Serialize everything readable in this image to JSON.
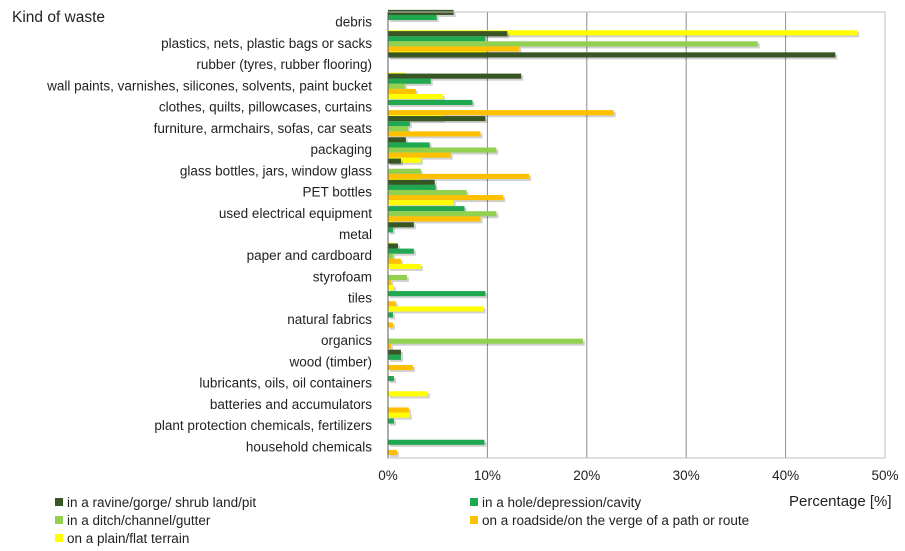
{
  "chart_data": {
    "type": "bar",
    "orientation": "horizontal",
    "corner_title": "Kind of waste",
    "xlabel": "Percentage [%]",
    "ylabel": "",
    "xlim": [
      0,
      50
    ],
    "xticks": [
      "0%",
      "10%",
      "20%",
      "30%",
      "40%",
      "50%"
    ],
    "grid": true,
    "legend_position": "bottom",
    "categories": [
      "debris",
      "plastics, nets, plastic bags or sacks",
      "rubber (tyres, rubber flooring)",
      "wall paints, varnishes, silicones, solvents, paint bucket",
      "clothes, quilts, pillowcases, curtains",
      "furniture, armchairs, sofas, car seats",
      "packaging",
      "glass bottles, jars, window glass",
      "PET bottles",
      "used electrical equipment",
      "metal",
      "paper and cardboard",
      "styrofoam",
      "tiles",
      "natural fabrics",
      "organics",
      "wood (timber)",
      "lubricants, oils, oil containers",
      "batteries and accumulators",
      "plant protection chemicals, fertilizers",
      "household chemicals"
    ],
    "series": [
      {
        "name": "in a ravine/gorge/ shrub land/pit",
        "color": "#375623",
        "values": [
          6.6,
          12.0,
          45.0,
          13.4,
          0,
          9.8,
          1.8,
          1.3,
          4.7,
          0,
          2.6,
          1.0,
          0,
          0,
          0,
          0,
          1.3,
          0,
          0,
          0,
          0
        ]
      },
      {
        "name": "in a hole/depression/cavity",
        "color": "#1fa84f",
        "values": [
          4.9,
          9.8,
          0,
          4.3,
          8.5,
          2.2,
          4.2,
          0,
          4.8,
          7.7,
          0.5,
          2.6,
          0,
          9.8,
          0.5,
          0,
          1.3,
          0.6,
          0,
          0.6,
          9.7
        ]
      },
      {
        "name": "in a ditch/channel/gutter",
        "color": "#92d050",
        "values": [
          0,
          37.2,
          0,
          1.7,
          0,
          2.0,
          10.9,
          3.3,
          7.9,
          10.9,
          0,
          0.5,
          1.9,
          0,
          0,
          19.6,
          0,
          0,
          0,
          0,
          0
        ]
      },
      {
        "name": "on a roadside/on the verge of a path or route",
        "color": "#ffc000",
        "values": [
          0,
          13.2,
          0,
          2.8,
          22.7,
          9.3,
          6.3,
          14.2,
          11.6,
          9.3,
          0,
          1.3,
          0.3,
          0.8,
          0.5,
          0.3,
          2.5,
          0,
          2.1,
          0,
          0.9
        ]
      },
      {
        "name": "on a plain/flat terrain",
        "color": "#ffff00",
        "values": [
          47.2,
          9.8,
          1.8,
          5.5,
          5.5,
          0,
          3.3,
          3.2,
          6.6,
          0.6,
          0.6,
          3.3,
          0.6,
          9.6,
          0,
          0,
          0,
          4.0,
          2.2,
          0,
          0
        ]
      }
    ]
  }
}
